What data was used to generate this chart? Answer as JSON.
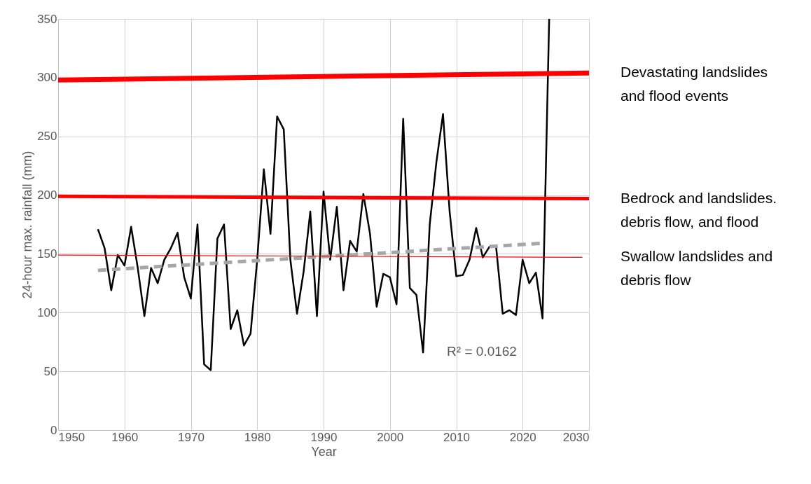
{
  "chart_data": {
    "type": "line",
    "xlabel": "Year",
    "ylabel": "24-hour max. rainfall (mm)",
    "xlim": [
      1950,
      2030
    ],
    "ylim": [
      0,
      350
    ],
    "xticks": [
      1950,
      1960,
      1970,
      1980,
      1990,
      2000,
      2010,
      2020,
      2030
    ],
    "yticks": [
      0,
      50,
      100,
      150,
      200,
      250,
      300,
      350
    ],
    "grid": true,
    "marker": "none",
    "x": [
      1956,
      1957,
      1958,
      1959,
      1960,
      1961,
      1962,
      1963,
      1964,
      1965,
      1966,
      1967,
      1968,
      1969,
      1970,
      1971,
      1972,
      1973,
      1974,
      1975,
      1976,
      1977,
      1978,
      1979,
      1980,
      1981,
      1982,
      1983,
      1984,
      1985,
      1986,
      1987,
      1988,
      1989,
      1990,
      1991,
      1992,
      1993,
      1994,
      1995,
      1996,
      1997,
      1998,
      1999,
      2000,
      2001,
      2002,
      2003,
      2004,
      2005,
      2006,
      2007,
      2008,
      2009,
      2010,
      2011,
      2012,
      2013,
      2014,
      2015,
      2016,
      2017,
      2018,
      2019,
      2020,
      2021,
      2022,
      2023,
      2024
    ],
    "series": [
      {
        "color": "#000000",
        "line_style": "solid",
        "values": [
          171,
          155,
          119,
          149,
          140,
          173,
          138,
          97,
          138,
          125,
          145,
          155,
          168,
          130,
          112,
          175,
          56,
          51,
          163,
          175,
          86,
          102,
          72,
          82,
          145,
          222,
          167,
          267,
          256,
          145,
          99,
          135,
          186,
          97,
          203,
          145,
          190,
          119,
          161,
          152,
          201,
          167,
          105,
          133,
          130,
          107,
          265,
          121,
          115,
          66,
          175,
          228,
          269,
          186,
          131,
          132,
          145,
          172,
          147,
          156,
          156,
          99,
          102,
          98,
          145,
          125,
          134,
          95,
          350
        ]
      },
      {
        "type": "line",
        "color": "#a6a6a6",
        "line_style": "dashed",
        "x": [
          1956,
          2023
        ],
        "values": [
          136,
          159
        ]
      },
      {
        "type": "line",
        "name": "Devastating landslides\n and flood events",
        "color": "#ff0000",
        "line_style": "solid",
        "x": [
          1950,
          2030
        ],
        "values": [
          298,
          304
        ]
      },
      {
        "type": "line",
        "name": "Bedrock and landslides.\ndebris flow, and flood",
        "color": "#ff0000",
        "line_style": "solid",
        "x": [
          1950,
          2030
        ],
        "values": [
          199,
          197
        ]
      },
      {
        "type": "line",
        "name": "Swallow landslides and\ndebris flow",
        "color": "#ff0000",
        "line_style": "solid",
        "x": [
          1950,
          2029
        ],
        "values": [
          149,
          147
        ]
      }
    ],
    "annotations": [
      "R² = 0.0162"
    ]
  }
}
